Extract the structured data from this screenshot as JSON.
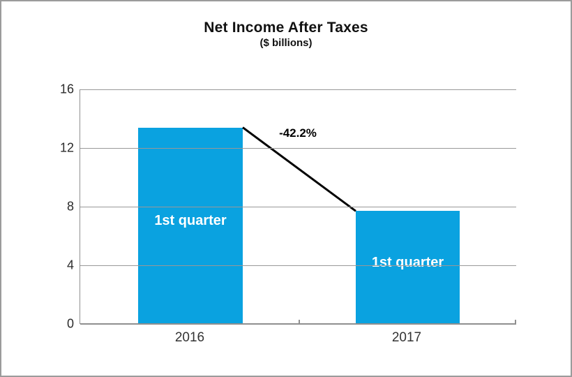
{
  "figure": {
    "border_color": "#9b9b9b",
    "background": "#ffffff"
  },
  "chart_data": {
    "type": "bar",
    "title": "Net Income After Taxes",
    "subtitle": "($ billions)",
    "categories": [
      "2016",
      "2017"
    ],
    "values": [
      13.4,
      7.7
    ],
    "bar_labels": [
      "1st quarter",
      "1st quarter"
    ],
    "annotation": "-42.2%",
    "xlabel": "",
    "ylabel": "",
    "ylim": [
      0,
      16
    ],
    "yticks": [
      0,
      4,
      8,
      12,
      16
    ],
    "grid": true,
    "legend": "none",
    "bar_color": "#0aa2e0",
    "bar_label_color": "#ffffff",
    "connector_color": "#000000",
    "gridline_color": "#989898"
  }
}
